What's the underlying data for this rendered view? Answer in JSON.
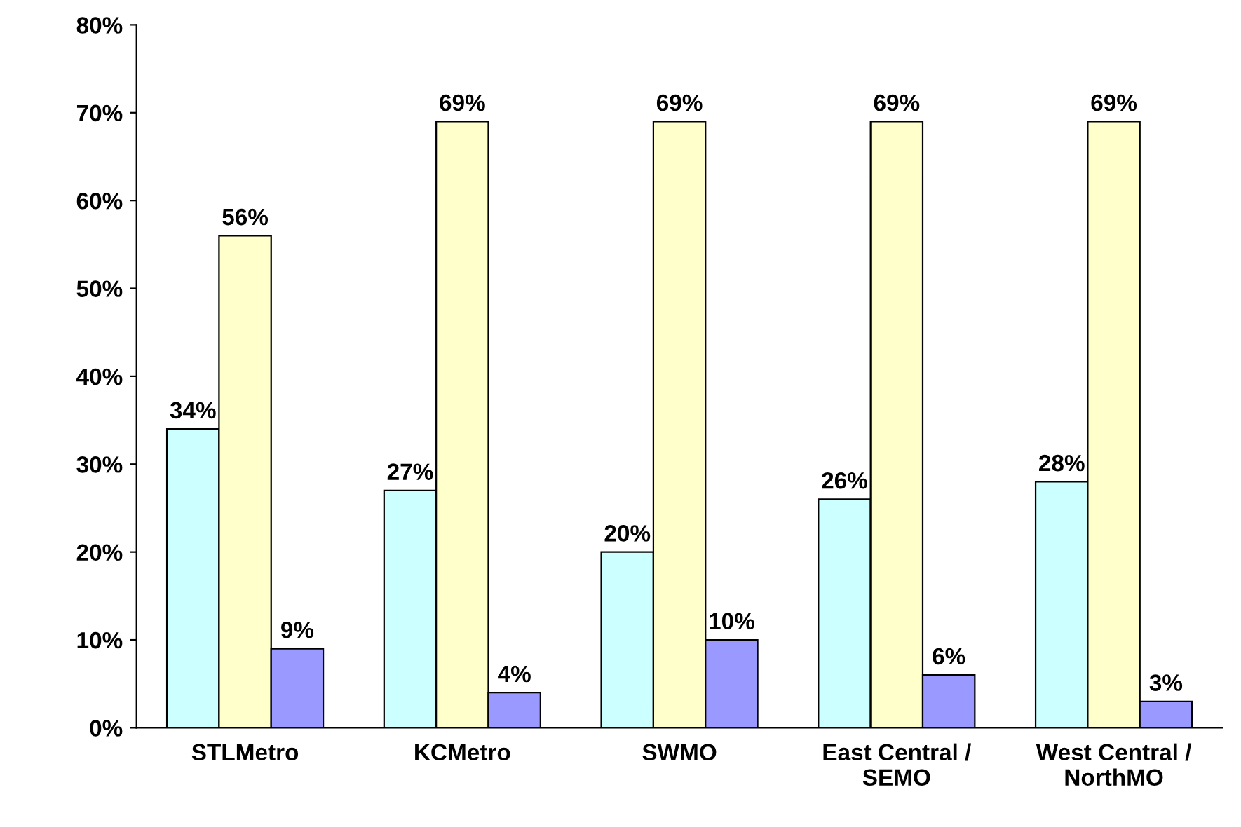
{
  "chart_data": {
    "type": "bar",
    "categories": [
      "STLMetro",
      "KCMetro",
      "SWMO",
      "East Central /\nSEMO",
      "West Central /\nNorthMO"
    ],
    "series": [
      {
        "color": "#ccffff",
        "values": [
          34,
          27,
          20,
          26,
          28
        ],
        "value_labels": [
          "34%",
          "27%",
          "20%",
          "26%",
          "28%"
        ]
      },
      {
        "color": "#ffffcc",
        "values": [
          56,
          69,
          69,
          69,
          69
        ],
        "value_labels": [
          "56%",
          "69%",
          "69%",
          "69%",
          "69%"
        ]
      },
      {
        "color": "#9999ff",
        "values": [
          9,
          4,
          10,
          6,
          3
        ],
        "value_labels": [
          "9%",
          "4%",
          "10%",
          "6%",
          "3%"
        ]
      }
    ],
    "ylim": [
      0,
      80
    ],
    "yticks": [
      {
        "value": 0,
        "label": "0%"
      },
      {
        "value": 10,
        "label": "10%"
      },
      {
        "value": 20,
        "label": "20%"
      },
      {
        "value": 30,
        "label": "30%"
      },
      {
        "value": 40,
        "label": "40%"
      },
      {
        "value": 50,
        "label": "50%"
      },
      {
        "value": 60,
        "label": "60%"
      },
      {
        "value": 70,
        "label": "70%"
      },
      {
        "value": 80,
        "label": "80%"
      }
    ],
    "grid": false,
    "legend": false
  }
}
